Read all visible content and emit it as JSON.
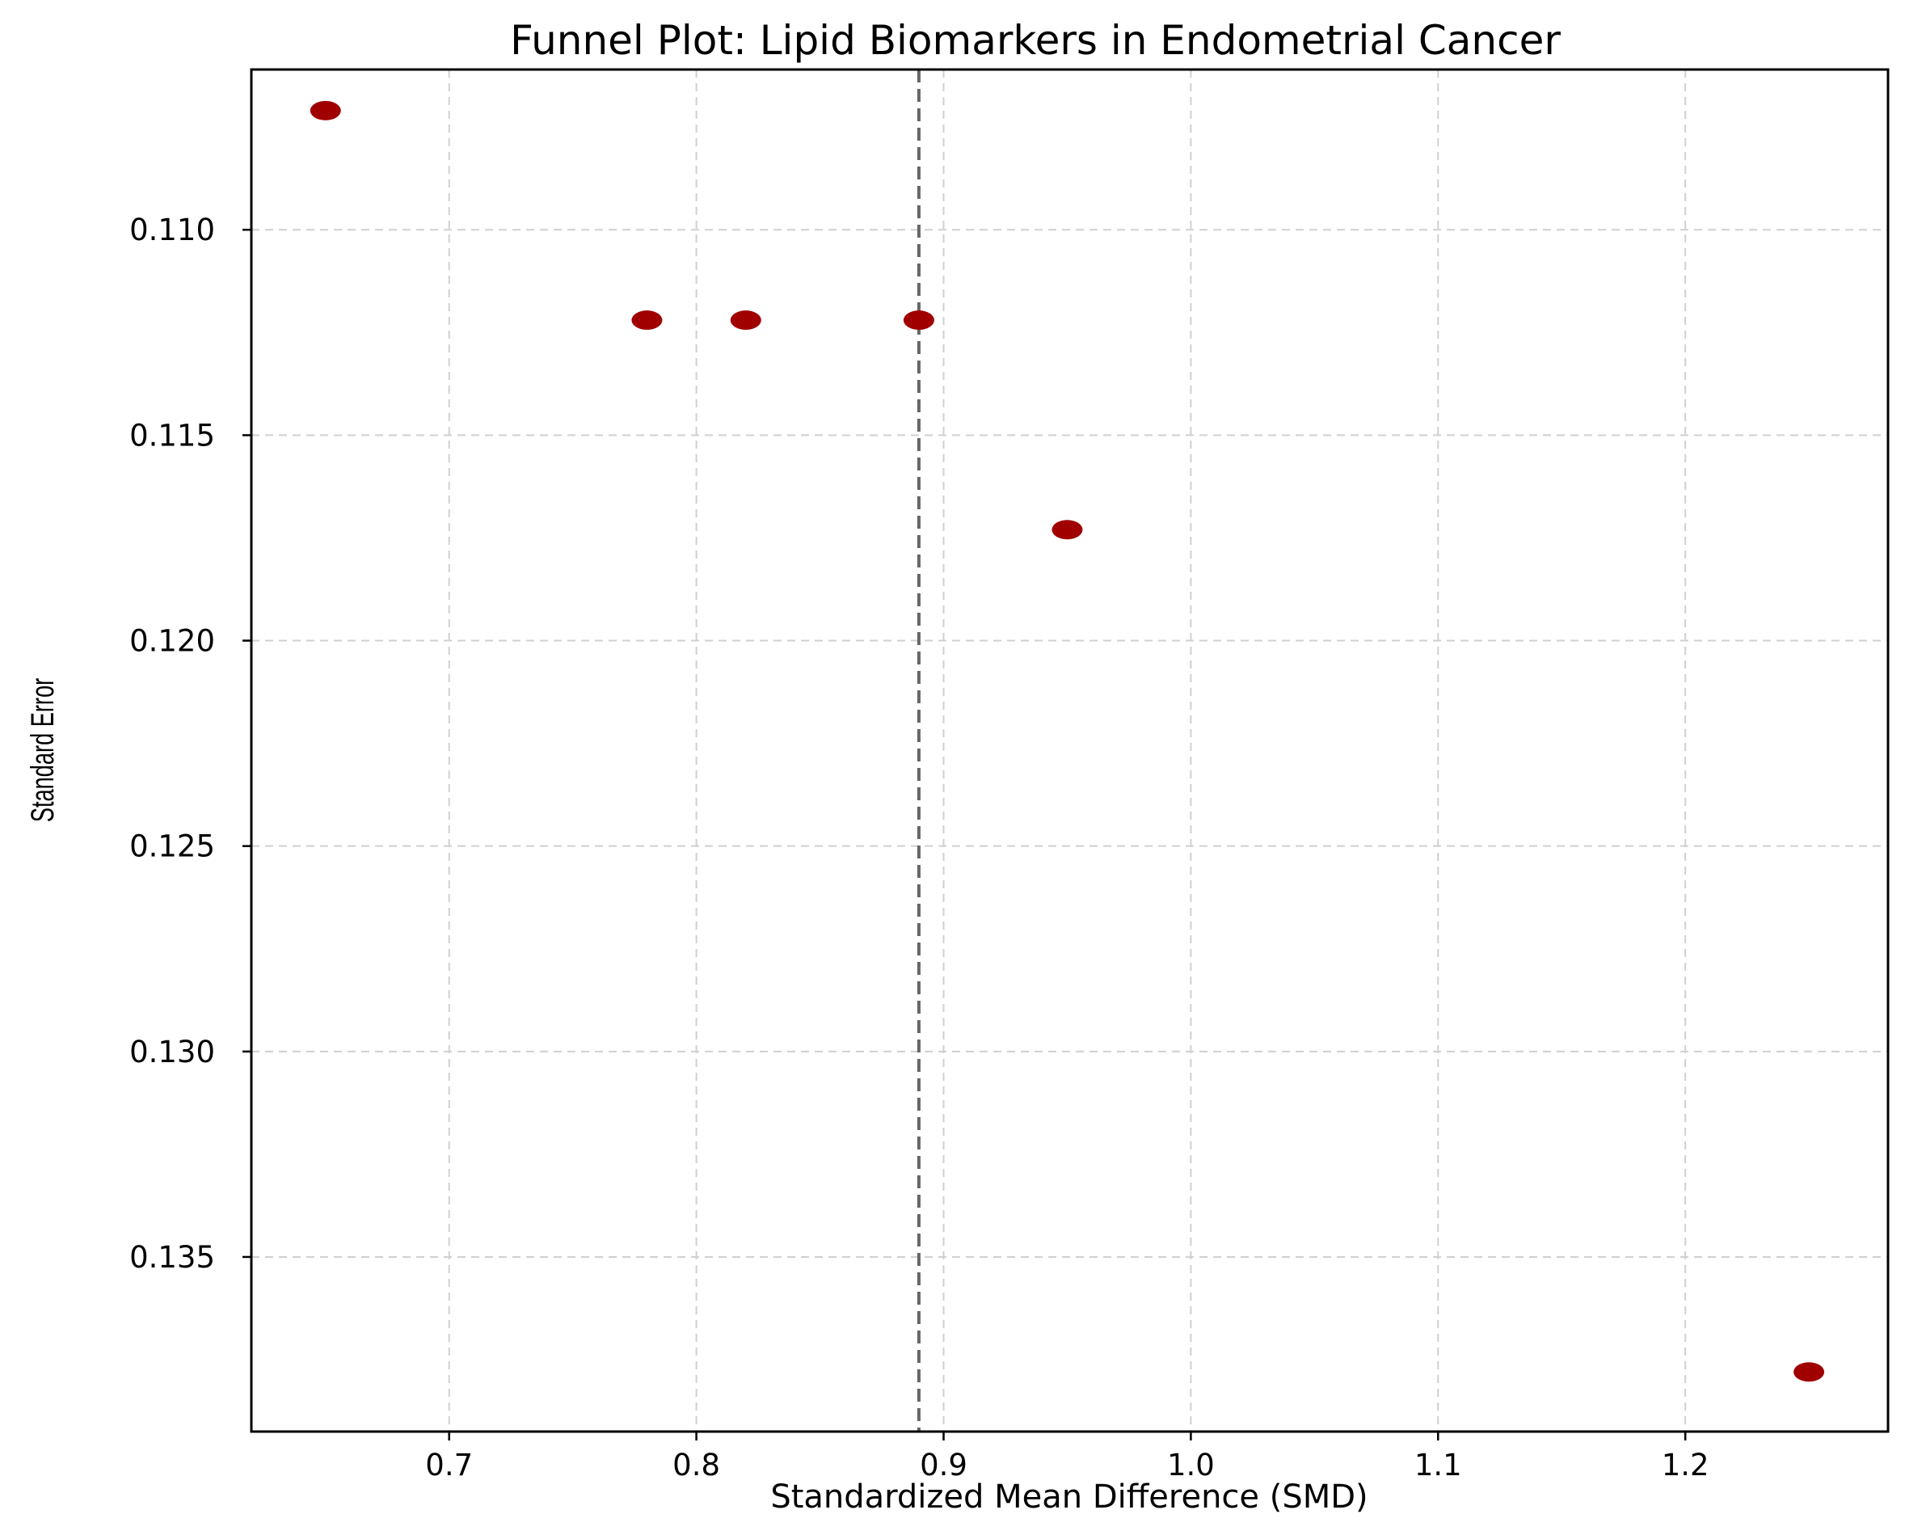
{
  "chart_data": {
    "type": "scatter",
    "title": "Funnel Plot: Lipid Biomarkers in Endometrial Cancer",
    "xlabel": "Standardized Mean Difference (SMD)",
    "ylabel": "Standard Error",
    "xlim": [
      0.62,
      1.282
    ],
    "ylim": [
      0.1061,
      0.13925
    ],
    "y_inverted": true,
    "grid": true,
    "x_ticks": [
      0.7,
      0.8,
      0.9,
      1.0,
      1.1,
      1.2
    ],
    "x_tick_labels": [
      "0.7",
      "0.8",
      "0.9",
      "1.0",
      "1.1",
      "1.2"
    ],
    "y_ticks": [
      0.11,
      0.115,
      0.12,
      0.125,
      0.13,
      0.135
    ],
    "y_tick_labels": [
      "0.110",
      "0.115",
      "0.120",
      "0.125",
      "0.130",
      "0.135"
    ],
    "reference_line": {
      "x": 0.89,
      "style": "dashed",
      "color": "#666666"
    },
    "marker_color": "#a00000",
    "points": [
      {
        "x": 0.65,
        "y": 0.1071
      },
      {
        "x": 0.78,
        "y": 0.1122
      },
      {
        "x": 0.82,
        "y": 0.1122
      },
      {
        "x": 0.89,
        "y": 0.1122
      },
      {
        "x": 0.95,
        "y": 0.1173
      },
      {
        "x": 1.25,
        "y": 0.1378
      }
    ]
  }
}
